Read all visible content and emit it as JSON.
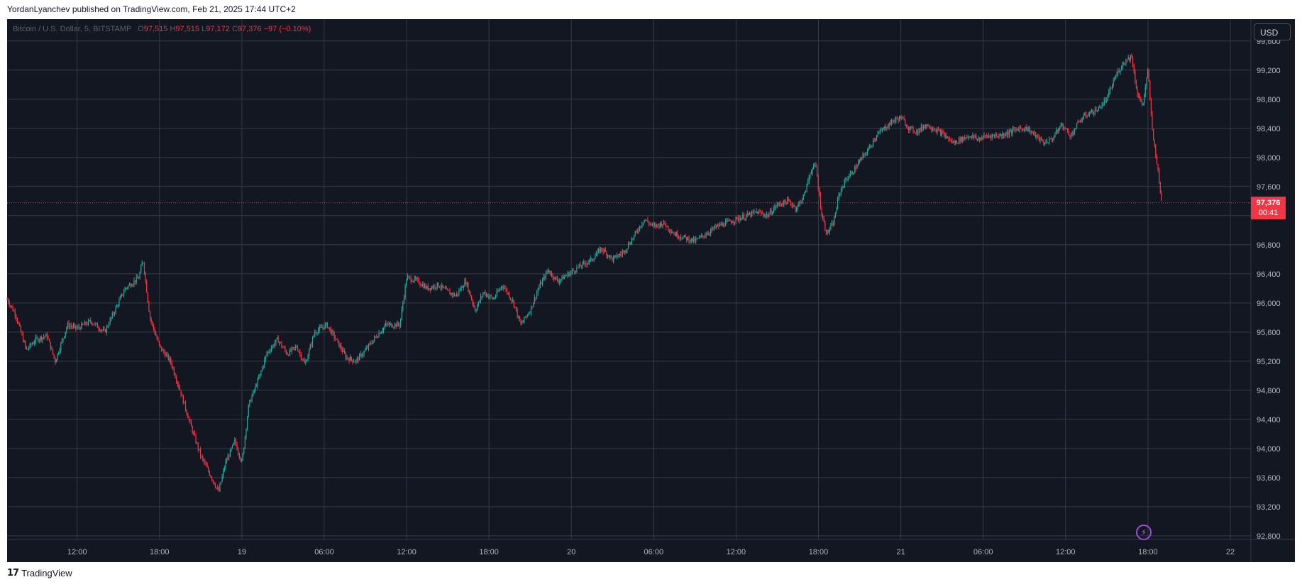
{
  "publisher": "YordanLyanchev published on TradingView.com, Feb 21, 2025 17:44 UTC+2",
  "footer": {
    "brand": "TradingView",
    "logo_text": "17"
  },
  "toolbar": {
    "currency": "USD"
  },
  "legend": {
    "symbol": "Bitcoin / U.S. Dollar, 5, BITSTAMP",
    "o_label": "O",
    "open": "97,515",
    "h_label": "H",
    "high": "97,515",
    "l_label": "L",
    "low": "97,172",
    "c_label": "C",
    "close": "97,376",
    "change": "−97 (−0.10%)"
  },
  "last_price": {
    "price": "97,376",
    "countdown": "00:41"
  },
  "colors": {
    "background": "#131722",
    "grid": "#363a45",
    "up": "#26a69a",
    "down": "#f23645",
    "axis_text": "#b2b5be"
  },
  "icons": {
    "flash": "lightning-icon",
    "logo": "tradingview-logo-icon"
  },
  "chart_data": {
    "type": "candlestick",
    "title": "Bitcoin / U.S. Dollar, 5, BITSTAMP",
    "interval": "5",
    "ylim": [
      92750,
      99900
    ],
    "y_ticks": [
      92800,
      93200,
      93600,
      94000,
      94400,
      94800,
      95200,
      95600,
      96000,
      96400,
      96800,
      97200,
      97600,
      98000,
      98400,
      98800,
      99200,
      99600
    ],
    "y_tick_labels": [
      "92,800",
      "93,200",
      "93,600",
      "94,000",
      "94,400",
      "94,800",
      "95,200",
      "95,600",
      "96,000",
      "96,400",
      "96,800",
      "97,200",
      "97,600",
      "98,000",
      "98,400",
      "98,800",
      "99,200",
      "99,600"
    ],
    "x_ticks": [
      "12:00",
      "18:00",
      "19",
      "06:00",
      "12:00",
      "18:00",
      "20",
      "06:00",
      "12:00",
      "18:00",
      "21",
      "06:00",
      "12:00",
      "18:00",
      "22"
    ],
    "x_tick_hours": [
      12,
      18,
      24,
      30,
      36,
      42,
      48,
      54,
      60,
      66,
      72,
      78,
      84,
      90,
      96
    ],
    "x_range_hours": [
      6.9,
      97.5
    ],
    "last_price_value": 97376,
    "price_path": [
      [
        6.9,
        96050
      ],
      [
        7.5,
        95850
      ],
      [
        8.3,
        95350
      ],
      [
        9.0,
        95500
      ],
      [
        9.8,
        95550
      ],
      [
        10.4,
        95200
      ],
      [
        11.3,
        95700
      ],
      [
        12.0,
        95650
      ],
      [
        13.0,
        95750
      ],
      [
        14.0,
        95600
      ],
      [
        15.5,
        96200
      ],
      [
        16.5,
        96350
      ],
      [
        16.8,
        96600
      ],
      [
        17.3,
        95800
      ],
      [
        18.0,
        95400
      ],
      [
        18.8,
        95200
      ],
      [
        19.5,
        94800
      ],
      [
        20.3,
        94300
      ],
      [
        21.0,
        93900
      ],
      [
        21.8,
        93600
      ],
      [
        22.3,
        93400
      ],
      [
        22.8,
        93800
      ],
      [
        23.5,
        94100
      ],
      [
        24.0,
        93800
      ],
      [
        24.5,
        94600
      ],
      [
        25.3,
        95000
      ],
      [
        25.8,
        95300
      ],
      [
        26.6,
        95500
      ],
      [
        27.3,
        95300
      ],
      [
        28.0,
        95400
      ],
      [
        28.6,
        95150
      ],
      [
        29.3,
        95600
      ],
      [
        30.2,
        95700
      ],
      [
        31.0,
        95450
      ],
      [
        31.6,
        95250
      ],
      [
        32.3,
        95200
      ],
      [
        33.0,
        95350
      ],
      [
        33.6,
        95500
      ],
      [
        34.5,
        95700
      ],
      [
        35.5,
        95700
      ],
      [
        36.0,
        96350
      ],
      [
        36.8,
        96300
      ],
      [
        37.5,
        96200
      ],
      [
        38.3,
        96250
      ],
      [
        39.0,
        96150
      ],
      [
        39.6,
        96100
      ],
      [
        40.3,
        96300
      ],
      [
        41.0,
        95900
      ],
      [
        41.6,
        96150
      ],
      [
        42.3,
        96050
      ],
      [
        43.0,
        96250
      ],
      [
        43.8,
        96000
      ],
      [
        44.3,
        95700
      ],
      [
        45.0,
        95900
      ],
      [
        45.6,
        96200
      ],
      [
        46.3,
        96450
      ],
      [
        47.0,
        96300
      ],
      [
        47.8,
        96400
      ],
      [
        48.6,
        96500
      ],
      [
        49.5,
        96600
      ],
      [
        50.2,
        96750
      ],
      [
        51.0,
        96600
      ],
      [
        51.8,
        96700
      ],
      [
        52.5,
        96900
      ],
      [
        53.3,
        97150
      ],
      [
        54.0,
        97050
      ],
      [
        54.7,
        97100
      ],
      [
        55.5,
        96950
      ],
      [
        56.2,
        96900
      ],
      [
        57.0,
        96850
      ],
      [
        57.8,
        96950
      ],
      [
        58.6,
        97050
      ],
      [
        59.3,
        97100
      ],
      [
        60.0,
        97150
      ],
      [
        60.8,
        97200
      ],
      [
        61.5,
        97250
      ],
      [
        62.3,
        97200
      ],
      [
        63.0,
        97350
      ],
      [
        63.8,
        97400
      ],
      [
        64.4,
        97300
      ],
      [
        65.0,
        97500
      ],
      [
        65.4,
        97800
      ],
      [
        65.8,
        97900
      ],
      [
        66.2,
        97250
      ],
      [
        66.6,
        96950
      ],
      [
        67.1,
        97100
      ],
      [
        67.5,
        97500
      ],
      [
        68.0,
        97700
      ],
      [
        68.5,
        97800
      ],
      [
        69.0,
        97950
      ],
      [
        69.6,
        98100
      ],
      [
        70.2,
        98300
      ],
      [
        70.8,
        98400
      ],
      [
        71.4,
        98500
      ],
      [
        72.0,
        98550
      ],
      [
        72.6,
        98400
      ],
      [
        73.2,
        98350
      ],
      [
        73.8,
        98450
      ],
      [
        74.4,
        98400
      ],
      [
        75.2,
        98300
      ],
      [
        75.8,
        98200
      ],
      [
        76.4,
        98250
      ],
      [
        77.0,
        98300
      ],
      [
        77.6,
        98250
      ],
      [
        78.4,
        98300
      ],
      [
        79.2,
        98300
      ],
      [
        80.0,
        98350
      ],
      [
        80.6,
        98400
      ],
      [
        81.2,
        98400
      ],
      [
        81.8,
        98300
      ],
      [
        82.4,
        98200
      ],
      [
        83.0,
        98250
      ],
      [
        83.7,
        98450
      ],
      [
        84.4,
        98300
      ],
      [
        85.0,
        98500
      ],
      [
        85.6,
        98600
      ],
      [
        86.3,
        98650
      ],
      [
        87.0,
        98800
      ],
      [
        87.6,
        99100
      ],
      [
        88.2,
        99300
      ],
      [
        88.8,
        99400
      ],
      [
        89.2,
        98900
      ],
      [
        89.6,
        98700
      ],
      [
        90.0,
        99200
      ],
      [
        90.3,
        98400
      ],
      [
        90.6,
        98000
      ],
      [
        91.0,
        97376
      ]
    ]
  }
}
